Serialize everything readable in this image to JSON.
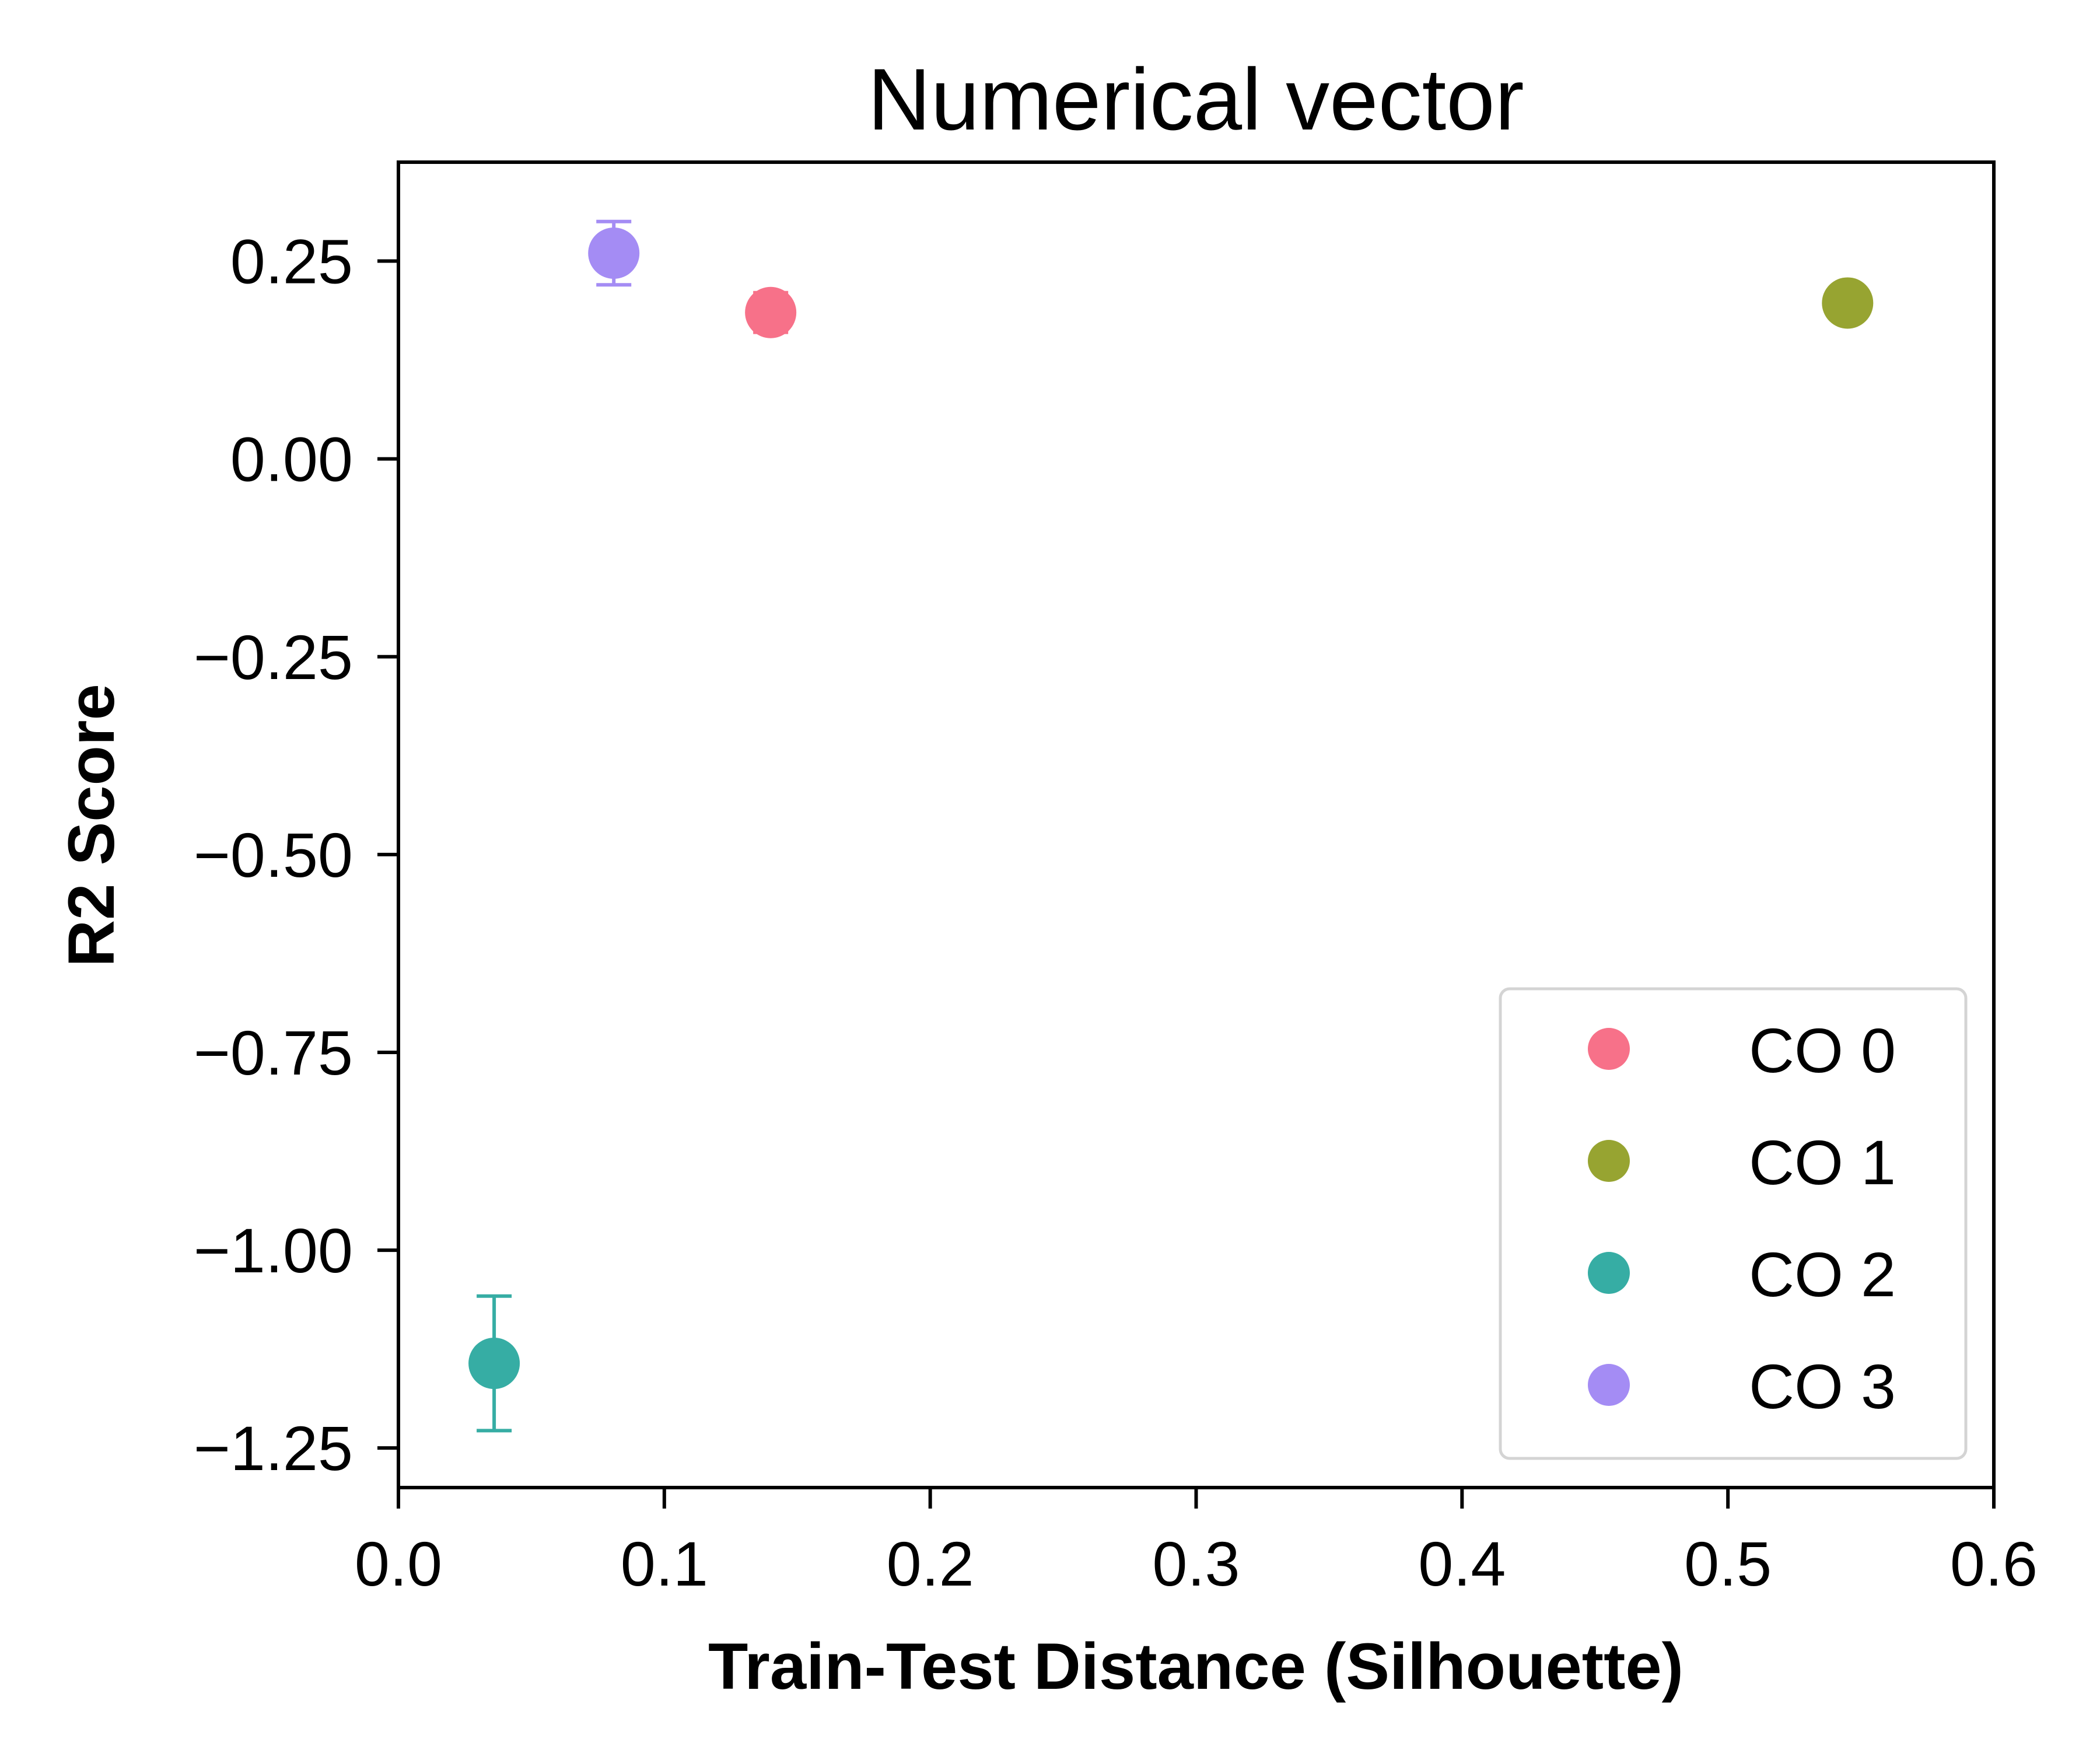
{
  "chart_data": {
    "type": "scatter",
    "title": "Numerical vector",
    "xlabel": "Train-Test Distance (Silhouette)",
    "ylabel": "R2 Score",
    "xlim": [
      0.0,
      0.6
    ],
    "ylim": [
      -1.3,
      0.375
    ],
    "xticks": [
      0.0,
      0.1,
      0.2,
      0.3,
      0.4,
      0.5,
      0.6
    ],
    "xtick_labels": [
      "0.0",
      "0.1",
      "0.2",
      "0.3",
      "0.4",
      "0.5",
      "0.6"
    ],
    "yticks": [
      0.25,
      0.0,
      -0.25,
      -0.5,
      -0.75,
      -1.0,
      -1.25
    ],
    "ytick_labels": [
      "0.25",
      "0.00",
      "−0.25",
      "−0.50",
      "−0.75",
      "−1.00",
      "−1.25"
    ],
    "grid": false,
    "legend_position": "lower-right",
    "series": [
      {
        "name": "CO 0",
        "color": "#f77189",
        "x": 0.14,
        "y": 0.185,
        "yerr": 0.025
      },
      {
        "name": "CO 1",
        "color": "#97a431",
        "x": 0.545,
        "y": 0.197,
        "yerr": 0.0
      },
      {
        "name": "CO 2",
        "color": "#36ada4",
        "x": 0.036,
        "y": -1.143,
        "yerr": 0.085
      },
      {
        "name": "CO 3",
        "color": "#a48cf4",
        "x": 0.081,
        "y": 0.26,
        "yerr": 0.04
      }
    ]
  }
}
